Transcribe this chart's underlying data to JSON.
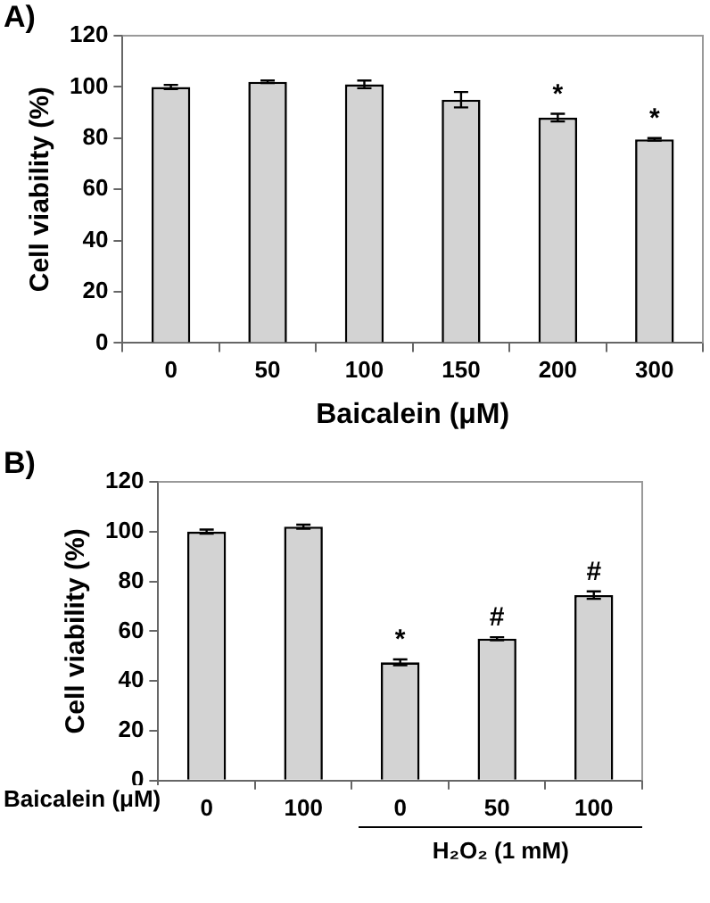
{
  "chart_data": [
    {
      "type": "bar",
      "title": "A)",
      "xlabel": "Baicalein (μM)",
      "ylabel": "Cell viability (%)",
      "categories": [
        "0",
        "50",
        "100",
        "150",
        "200",
        "300"
      ],
      "values": [
        100,
        102,
        101,
        95,
        88,
        79.5
      ],
      "errors": [
        0.8,
        0.5,
        1.5,
        3,
        1.5,
        0.5
      ],
      "value_labels": [
        null,
        null,
        null,
        null,
        "*",
        "*"
      ],
      "color": "#d3d3d3",
      "ylim": [
        0,
        120
      ],
      "yticks": [
        0,
        20,
        40,
        60,
        80,
        100,
        120
      ],
      "grid": false
    },
    {
      "type": "bar",
      "title": "B)",
      "xlabel": "Baicalein (μM)",
      "ylabel": "Cell viability (%)",
      "categories": [
        "0",
        "100",
        "0",
        "50",
        "100"
      ],
      "values": [
        100,
        102,
        47.5,
        57,
        74.5
      ],
      "errors": [
        0.8,
        0.8,
        1.2,
        0.6,
        1.5
      ],
      "value_labels": [
        null,
        null,
        "*",
        "#",
        "#"
      ],
      "color": "#d3d3d3",
      "ylim": [
        0,
        120
      ],
      "yticks": [
        0,
        20,
        40,
        60,
        80,
        100,
        120
      ],
      "grid": false,
      "annotations": [
        "H₂O₂ (1 mM)"
      ]
    }
  ]
}
